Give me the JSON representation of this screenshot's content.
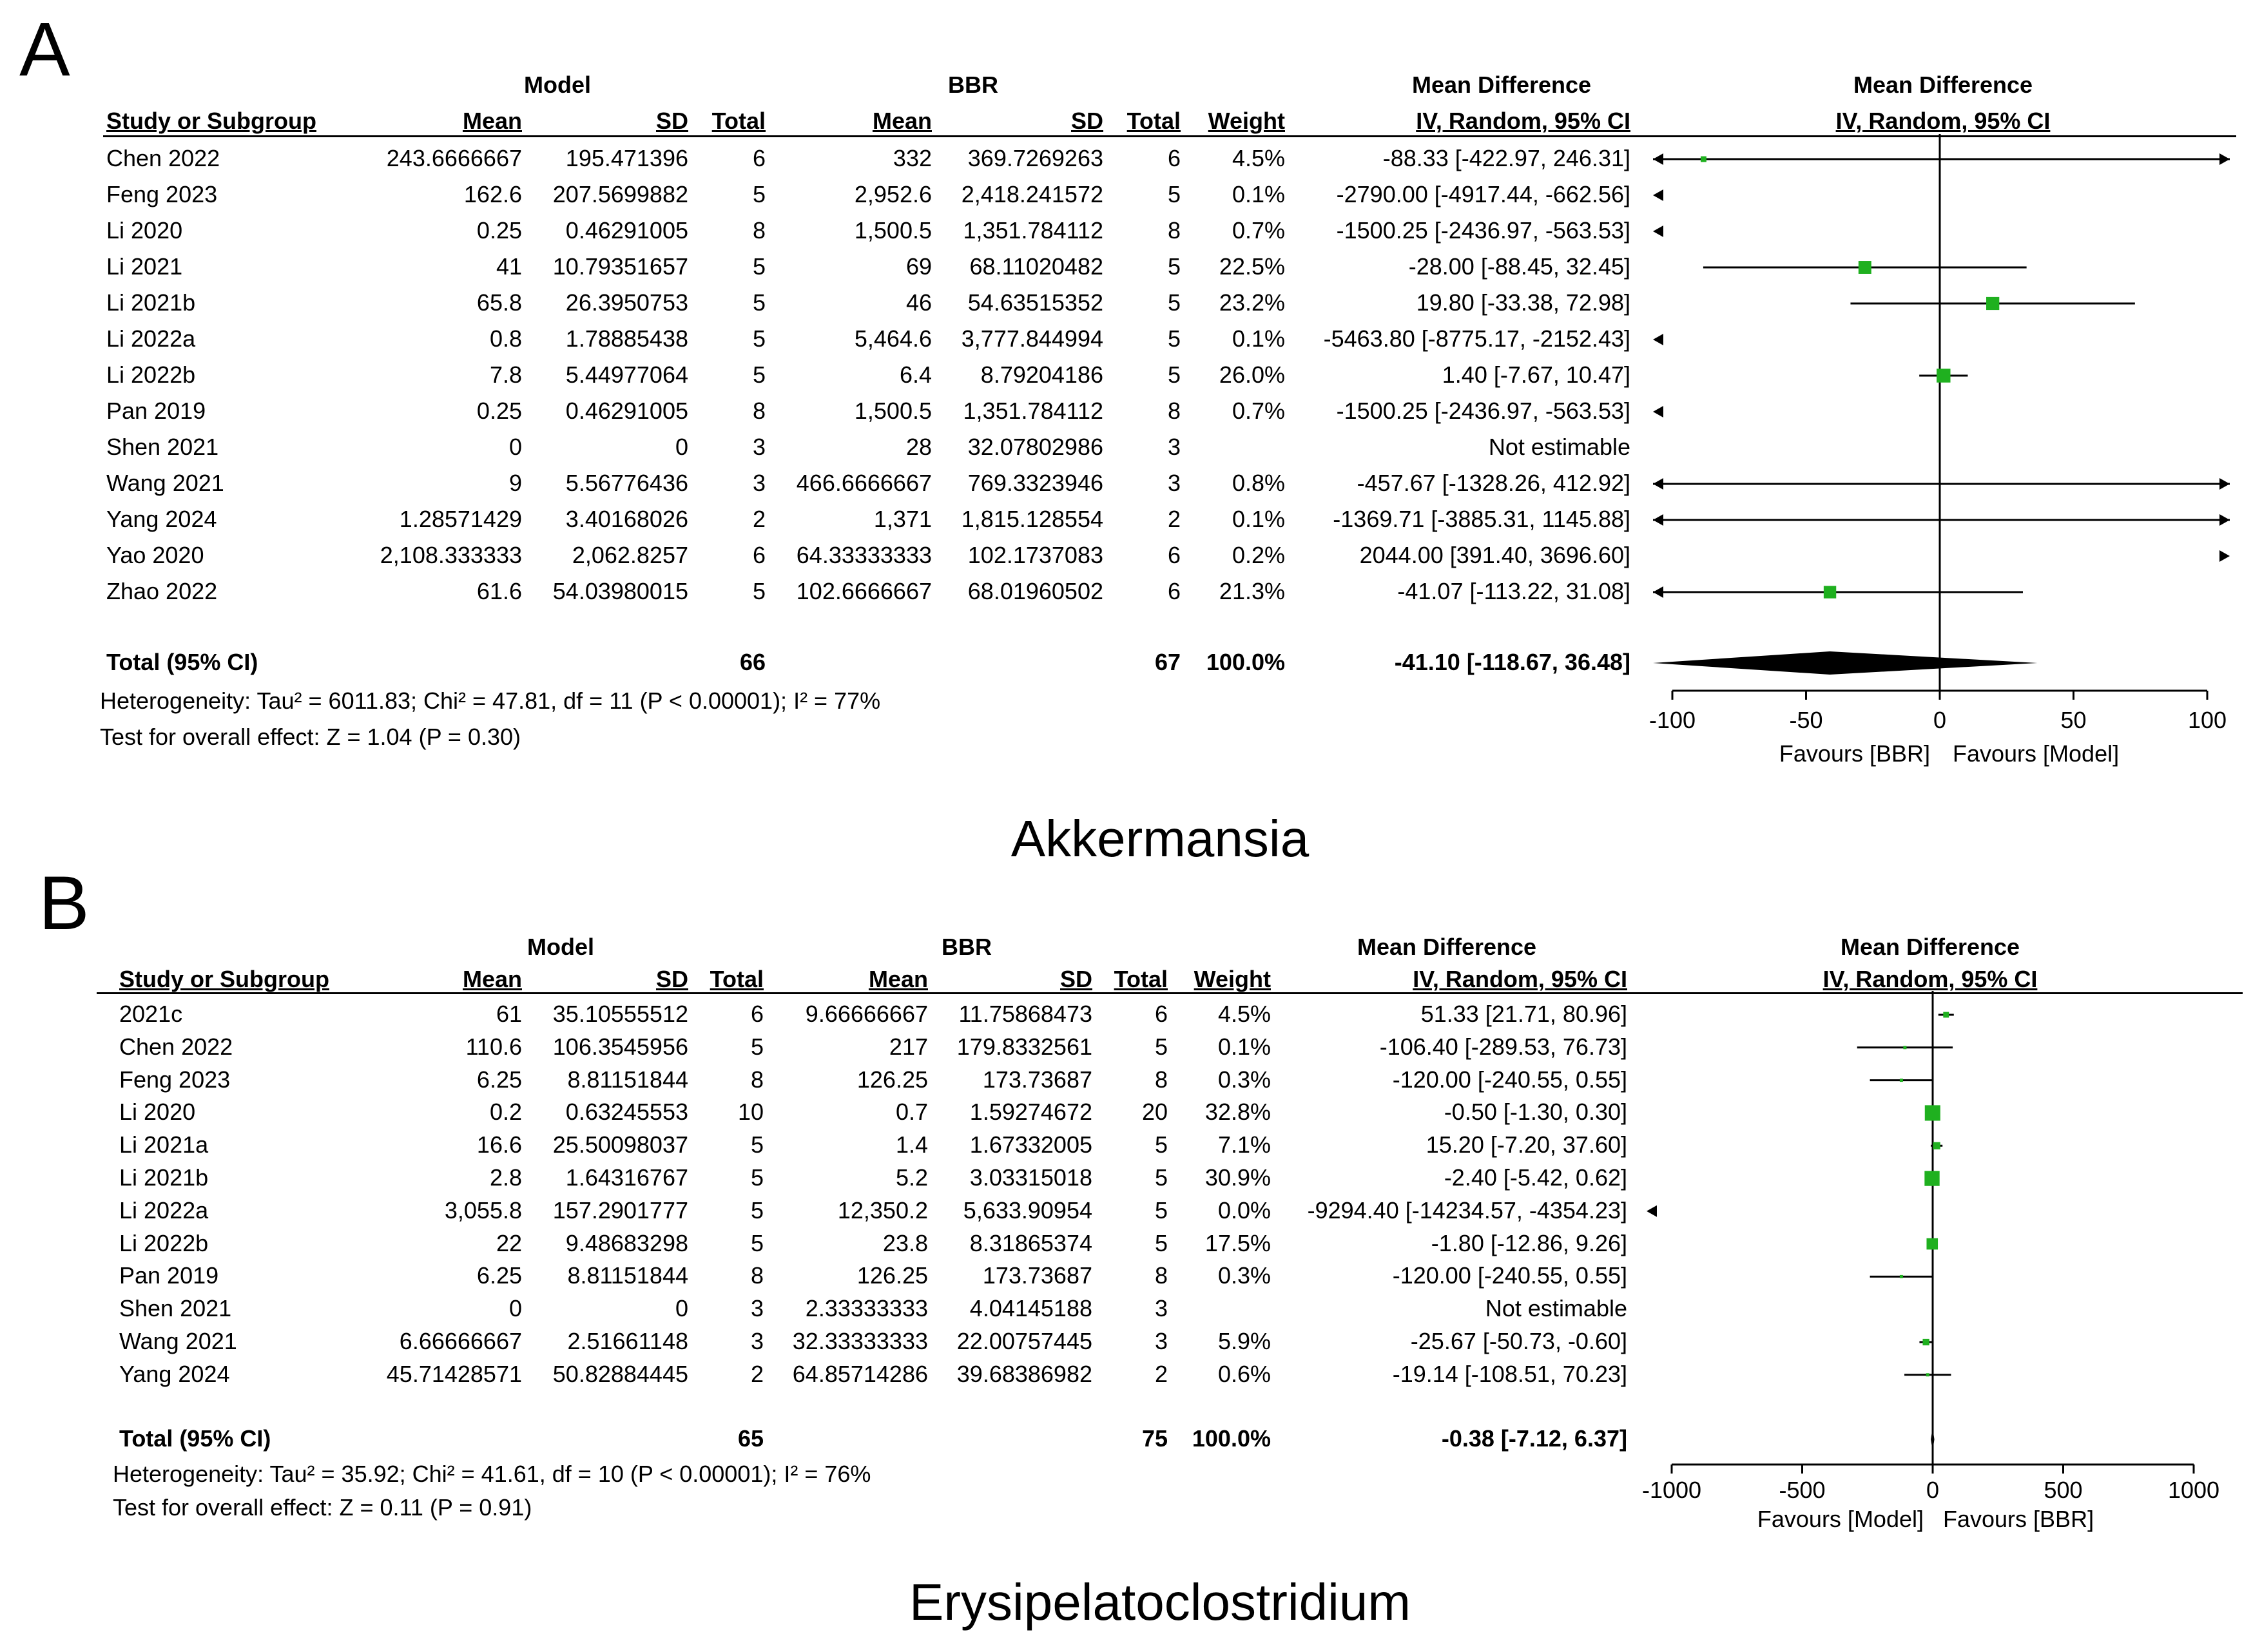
{
  "colors": {
    "square": "#1fb01f",
    "diamond": "#000000",
    "line": "#000000"
  },
  "panels": [
    {
      "letter": "A",
      "caption": "Akkermansia",
      "header": {
        "group1": "Model",
        "group2": "BBR",
        "md_label": "Mean Difference",
        "md_sub": "IV, Random, 95% CI",
        "plot_title": "Mean Difference",
        "plot_sub": "IV, Random, 95% CI",
        "study": "Study or Subgroup",
        "mean": "Mean",
        "sd": "SD",
        "total": "Total",
        "weight": "Weight"
      },
      "studies": [
        {
          "name": "Chen 2022",
          "m1": "243.6666667",
          "sd1": "195.471396",
          "n1": "6",
          "m2": "332",
          "sd2": "369.7269263",
          "n2": "6",
          "weight": "4.5%",
          "ci": "-88.33 [-422.97, 246.31]"
        },
        {
          "name": "Feng 2023",
          "m1": "162.6",
          "sd1": "207.5699882",
          "n1": "5",
          "m2": "2,952.6",
          "sd2": "2,418.241572",
          "n2": "5",
          "weight": "0.1%",
          "ci": "-2790.00 [-4917.44, -662.56]"
        },
        {
          "name": "Li 2020",
          "m1": "0.25",
          "sd1": "0.46291005",
          "n1": "8",
          "m2": "1,500.5",
          "sd2": "1,351.784112",
          "n2": "8",
          "weight": "0.7%",
          "ci": "-1500.25 [-2436.97, -563.53]"
        },
        {
          "name": "Li 2021",
          "m1": "41",
          "sd1": "10.79351657",
          "n1": "5",
          "m2": "69",
          "sd2": "68.11020482",
          "n2": "5",
          "weight": "22.5%",
          "ci": "-28.00 [-88.45, 32.45]"
        },
        {
          "name": "Li 2021b",
          "m1": "65.8",
          "sd1": "26.3950753",
          "n1": "5",
          "m2": "46",
          "sd2": "54.63515352",
          "n2": "5",
          "weight": "23.2%",
          "ci": "19.80 [-33.38, 72.98]"
        },
        {
          "name": "Li 2022a",
          "m1": "0.8",
          "sd1": "1.78885438",
          "n1": "5",
          "m2": "5,464.6",
          "sd2": "3,777.844994",
          "n2": "5",
          "weight": "0.1%",
          "ci": "-5463.80 [-8775.17, -2152.43]"
        },
        {
          "name": "Li 2022b",
          "m1": "7.8",
          "sd1": "5.44977064",
          "n1": "5",
          "m2": "6.4",
          "sd2": "8.79204186",
          "n2": "5",
          "weight": "26.0%",
          "ci": "1.40 [-7.67, 10.47]"
        },
        {
          "name": "Pan 2019",
          "m1": "0.25",
          "sd1": "0.46291005",
          "n1": "8",
          "m2": "1,500.5",
          "sd2": "1,351.784112",
          "n2": "8",
          "weight": "0.7%",
          "ci": "-1500.25 [-2436.97, -563.53]"
        },
        {
          "name": "Shen 2021",
          "m1": "0",
          "sd1": "0",
          "n1": "3",
          "m2": "28",
          "sd2": "32.07802986",
          "n2": "3",
          "weight": "",
          "ci": "Not estimable"
        },
        {
          "name": "Wang 2021",
          "m1": "9",
          "sd1": "5.56776436",
          "n1": "3",
          "m2": "466.6666667",
          "sd2": "769.3323946",
          "n2": "3",
          "weight": "0.8%",
          "ci": "-457.67 [-1328.26, 412.92]"
        },
        {
          "name": "Yang 2024",
          "m1": "1.28571429",
          "sd1": "3.40168026",
          "n1": "2",
          "m2": "1,371",
          "sd2": "1,815.128554",
          "n2": "2",
          "weight": "0.1%",
          "ci": "-1369.71 [-3885.31, 1145.88]"
        },
        {
          "name": "Yao 2020",
          "m1": "2,108.333333",
          "sd1": "2,062.8257",
          "n1": "6",
          "m2": "64.33333333",
          "sd2": "102.1737083",
          "n2": "6",
          "weight": "0.2%",
          "ci": "2044.00 [391.40, 3696.60]"
        },
        {
          "name": "Zhao 2022",
          "m1": "61.6",
          "sd1": "54.03980015",
          "n1": "5",
          "m2": "102.6666667",
          "sd2": "68.01960502",
          "n2": "6",
          "weight": "21.3%",
          "ci": "-41.07 [-113.22, 31.08]"
        }
      ],
      "total": {
        "label": "Total (95% CI)",
        "n1": "66",
        "n2": "67",
        "weight": "100.0%",
        "ci": "-41.10 [-118.67, 36.48]"
      },
      "heterogeneity": "Heterogeneity: Tau² = 6011.83; Chi² = 47.81, df = 11 (P < 0.00001); I² = 77%",
      "overall": "Test for overall effect: Z = 1.04 (P = 0.30)",
      "chart_data": {
        "type": "forest",
        "xlim": [
          -100,
          100
        ],
        "ticks": [
          -100,
          -50,
          0,
          50,
          100
        ],
        "tick_labels": [
          "-100",
          "-50",
          "0",
          "50",
          "100"
        ],
        "favours_left": "Favours [BBR]",
        "favours_right": "Favours [Model]",
        "estimates": [
          {
            "md": -88.33,
            "lo": -422.97,
            "hi": 246.31,
            "w": 4.5
          },
          {
            "md": -2790.0,
            "lo": -4917.44,
            "hi": -662.56,
            "w": 0.1
          },
          {
            "md": -1500.25,
            "lo": -2436.97,
            "hi": -563.53,
            "w": 0.7
          },
          {
            "md": -28.0,
            "lo": -88.45,
            "hi": 32.45,
            "w": 22.5
          },
          {
            "md": 19.8,
            "lo": -33.38,
            "hi": 72.98,
            "w": 23.2
          },
          {
            "md": -5463.8,
            "lo": -8775.17,
            "hi": -2152.43,
            "w": 0.1
          },
          {
            "md": 1.4,
            "lo": -7.67,
            "hi": 10.47,
            "w": 26.0
          },
          {
            "md": -1500.25,
            "lo": -2436.97,
            "hi": -563.53,
            "w": 0.7
          },
          null,
          {
            "md": -457.67,
            "lo": -1328.26,
            "hi": 412.92,
            "w": 0.8
          },
          {
            "md": -1369.71,
            "lo": -3885.31,
            "hi": 1145.88,
            "w": 0.1
          },
          {
            "md": 2044.0,
            "lo": 391.4,
            "hi": 3696.6,
            "w": 0.2
          },
          {
            "md": -41.07,
            "lo": -113.22,
            "hi": 31.08,
            "w": 21.3
          }
        ],
        "pooled": {
          "md": -41.1,
          "lo": -118.67,
          "hi": 36.48
        }
      }
    },
    {
      "letter": "B",
      "caption": "Erysipelatoclostridium",
      "header": {
        "group1": "Model",
        "group2": "BBR",
        "md_label": "Mean Difference",
        "md_sub": "IV, Random, 95% CI",
        "plot_title": "Mean Difference",
        "plot_sub": "IV, Random, 95% CI",
        "study": "Study or Subgroup",
        "mean": "Mean",
        "sd": "SD",
        "total": "Total",
        "weight": "Weight"
      },
      "studies": [
        {
          "name": "2021c",
          "m1": "61",
          "sd1": "35.10555512",
          "n1": "6",
          "m2": "9.66666667",
          "sd2": "11.75868473",
          "n2": "6",
          "weight": "4.5%",
          "ci": "51.33 [21.71, 80.96]"
        },
        {
          "name": "Chen 2022",
          "m1": "110.6",
          "sd1": "106.3545956",
          "n1": "5",
          "m2": "217",
          "sd2": "179.8332561",
          "n2": "5",
          "weight": "0.1%",
          "ci": "-106.40 [-289.53, 76.73]"
        },
        {
          "name": "Feng 2023",
          "m1": "6.25",
          "sd1": "8.81151844",
          "n1": "8",
          "m2": "126.25",
          "sd2": "173.73687",
          "n2": "8",
          "weight": "0.3%",
          "ci": "-120.00 [-240.55, 0.55]"
        },
        {
          "name": "Li 2020",
          "m1": "0.2",
          "sd1": "0.63245553",
          "n1": "10",
          "m2": "0.7",
          "sd2": "1.59274672",
          "n2": "20",
          "weight": "32.8%",
          "ci": "-0.50 [-1.30, 0.30]"
        },
        {
          "name": "Li 2021a",
          "m1": "16.6",
          "sd1": "25.50098037",
          "n1": "5",
          "m2": "1.4",
          "sd2": "1.67332005",
          "n2": "5",
          "weight": "7.1%",
          "ci": "15.20 [-7.20, 37.60]"
        },
        {
          "name": "Li 2021b",
          "m1": "2.8",
          "sd1": "1.64316767",
          "n1": "5",
          "m2": "5.2",
          "sd2": "3.03315018",
          "n2": "5",
          "weight": "30.9%",
          "ci": "-2.40 [-5.42, 0.62]"
        },
        {
          "name": "Li 2022a",
          "m1": "3,055.8",
          "sd1": "157.2901777",
          "n1": "5",
          "m2": "12,350.2",
          "sd2": "5,633.90954",
          "n2": "5",
          "weight": "0.0%",
          "ci": "-9294.40 [-14234.57, -4354.23]"
        },
        {
          "name": "Li 2022b",
          "m1": "22",
          "sd1": "9.48683298",
          "n1": "5",
          "m2": "23.8",
          "sd2": "8.31865374",
          "n2": "5",
          "weight": "17.5%",
          "ci": "-1.80 [-12.86, 9.26]"
        },
        {
          "name": "Pan 2019",
          "m1": "6.25",
          "sd1": "8.81151844",
          "n1": "8",
          "m2": "126.25",
          "sd2": "173.73687",
          "n2": "8",
          "weight": "0.3%",
          "ci": "-120.00 [-240.55, 0.55]"
        },
        {
          "name": "Shen 2021",
          "m1": "0",
          "sd1": "0",
          "n1": "3",
          "m2": "2.33333333",
          "sd2": "4.04145188",
          "n2": "3",
          "weight": "",
          "ci": "Not estimable"
        },
        {
          "name": "Wang 2021",
          "m1": "6.66666667",
          "sd1": "2.51661148",
          "n1": "3",
          "m2": "32.33333333",
          "sd2": "22.00757445",
          "n2": "3",
          "weight": "5.9%",
          "ci": "-25.67 [-50.73, -0.60]"
        },
        {
          "name": "Yang 2024",
          "m1": "45.71428571",
          "sd1": "50.82884445",
          "n1": "2",
          "m2": "64.85714286",
          "sd2": "39.68386982",
          "n2": "2",
          "weight": "0.6%",
          "ci": "-19.14 [-108.51, 70.23]"
        }
      ],
      "total": {
        "label": "Total (95% CI)",
        "n1": "65",
        "n2": "75",
        "weight": "100.0%",
        "ci": "-0.38 [-7.12, 6.37]"
      },
      "heterogeneity": "Heterogeneity: Tau² = 35.92; Chi² = 41.61, df = 10 (P < 0.00001); I² = 76%",
      "overall": "Test for overall effect: Z = 0.11 (P = 0.91)",
      "chart_data": {
        "type": "forest",
        "xlim": [
          -1000,
          1000
        ],
        "ticks": [
          -1000,
          -500,
          0,
          500,
          1000
        ],
        "tick_labels": [
          "-1000",
          "-500",
          "0",
          "500",
          "1000"
        ],
        "favours_left": "Favours [Model]",
        "favours_right": "Favours [BBR]",
        "estimates": [
          {
            "md": 51.33,
            "lo": 21.71,
            "hi": 80.96,
            "w": 4.5
          },
          {
            "md": -106.4,
            "lo": -289.53,
            "hi": 76.73,
            "w": 0.1
          },
          {
            "md": -120.0,
            "lo": -240.55,
            "hi": 0.55,
            "w": 0.3
          },
          {
            "md": -0.5,
            "lo": -1.3,
            "hi": 0.3,
            "w": 32.8
          },
          {
            "md": 15.2,
            "lo": -7.2,
            "hi": 37.6,
            "w": 7.1
          },
          {
            "md": -2.4,
            "lo": -5.42,
            "hi": 0.62,
            "w": 30.9
          },
          {
            "md": -9294.4,
            "lo": -14234.57,
            "hi": -4354.23,
            "w": 0.0
          },
          {
            "md": -1.8,
            "lo": -12.86,
            "hi": 9.26,
            "w": 17.5
          },
          {
            "md": -120.0,
            "lo": -240.55,
            "hi": 0.55,
            "w": 0.3
          },
          null,
          {
            "md": -25.67,
            "lo": -50.73,
            "hi": -0.6,
            "w": 5.9
          },
          {
            "md": -19.14,
            "lo": -108.51,
            "hi": 70.23,
            "w": 0.6
          }
        ],
        "pooled": {
          "md": -0.38,
          "lo": -7.12,
          "hi": 6.37
        }
      }
    }
  ]
}
